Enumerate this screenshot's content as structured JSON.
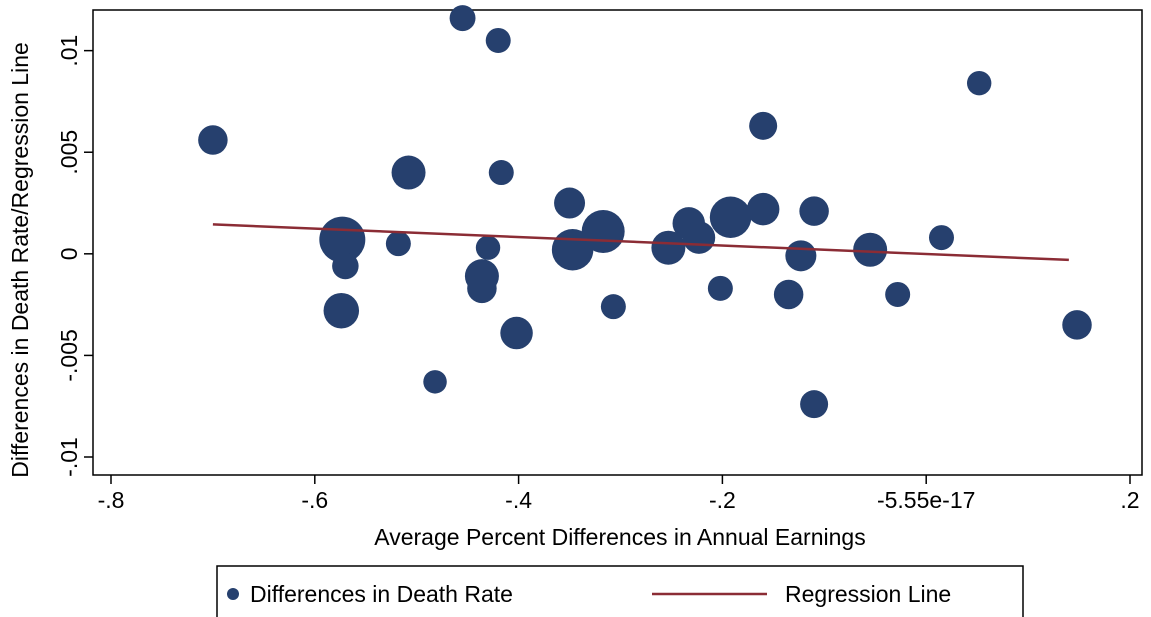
{
  "chart_data": {
    "type": "scatter",
    "xlabel": "Average Percent Differences in Annual Earnings",
    "ylabel": "Differences in Death Rate/Regression Line",
    "xlim": [
      -0.8,
      0.2
    ],
    "ylim": [
      -0.01,
      0.012
    ],
    "x_ticks": [
      {
        "value": -0.8,
        "label": "-.8"
      },
      {
        "value": -0.6,
        "label": "-.6"
      },
      {
        "value": -0.4,
        "label": "-.4"
      },
      {
        "value": -0.2,
        "label": "-.2"
      },
      {
        "value": 0.0,
        "label": "-5.55e-17"
      },
      {
        "value": 0.2,
        "label": ".2"
      }
    ],
    "y_ticks": [
      {
        "value": -0.01,
        "label": "-.01"
      },
      {
        "value": -0.005,
        "label": "-.005"
      },
      {
        "value": 0.0,
        "label": "0"
      },
      {
        "value": 0.005,
        "label": ".005"
      },
      {
        "value": 0.01,
        "label": ".01"
      }
    ],
    "grid": false,
    "legend_position": "bottom",
    "series": [
      {
        "name": "Differences in Death Rate",
        "kind": "scatter",
        "color": "#26406e",
        "points": [
          {
            "x": -0.7,
            "y": 0.0056,
            "size": 0.45
          },
          {
            "x": -0.573,
            "y": 0.0007,
            "size": 1.0
          },
          {
            "x": -0.57,
            "y": -0.0006,
            "size": 0.35
          },
          {
            "x": -0.574,
            "y": -0.0028,
            "size": 0.65
          },
          {
            "x": -0.518,
            "y": 0.0005,
            "size": 0.3
          },
          {
            "x": -0.508,
            "y": 0.004,
            "size": 0.6
          },
          {
            "x": -0.482,
            "y": -0.0063,
            "size": 0.25
          },
          {
            "x": -0.455,
            "y": 0.0116,
            "size": 0.33
          },
          {
            "x": -0.43,
            "y": 0.0003,
            "size": 0.28
          },
          {
            "x": -0.436,
            "y": -0.0011,
            "size": 0.6
          },
          {
            "x": -0.436,
            "y": -0.0017,
            "size": 0.45
          },
          {
            "x": -0.42,
            "y": 0.0105,
            "size": 0.3
          },
          {
            "x": -0.417,
            "y": 0.004,
            "size": 0.3
          },
          {
            "x": -0.402,
            "y": -0.0039,
            "size": 0.55
          },
          {
            "x": -0.35,
            "y": 0.0025,
            "size": 0.5
          },
          {
            "x": -0.347,
            "y": 0.0002,
            "size": 0.85
          },
          {
            "x": -0.317,
            "y": 0.0011,
            "size": 0.9
          },
          {
            "x": -0.307,
            "y": -0.0026,
            "size": 0.3
          },
          {
            "x": -0.253,
            "y": 0.0003,
            "size": 0.6
          },
          {
            "x": -0.233,
            "y": 0.0015,
            "size": 0.55
          },
          {
            "x": -0.223,
            "y": 0.0008,
            "size": 0.55
          },
          {
            "x": -0.202,
            "y": -0.0017,
            "size": 0.3
          },
          {
            "x": -0.192,
            "y": 0.0018,
            "size": 0.85
          },
          {
            "x": -0.16,
            "y": 0.0063,
            "size": 0.4
          },
          {
            "x": -0.16,
            "y": 0.0022,
            "size": 0.55
          },
          {
            "x": -0.135,
            "y": -0.002,
            "size": 0.45
          },
          {
            "x": -0.123,
            "y": -0.0001,
            "size": 0.5
          },
          {
            "x": -0.11,
            "y": 0.0021,
            "size": 0.45
          },
          {
            "x": -0.11,
            "y": -0.0074,
            "size": 0.4
          },
          {
            "x": -0.055,
            "y": 0.0002,
            "size": 0.6
          },
          {
            "x": -0.028,
            "y": -0.002,
            "size": 0.3
          },
          {
            "x": 0.015,
            "y": 0.0008,
            "size": 0.3
          },
          {
            "x": 0.052,
            "y": 0.0084,
            "size": 0.28
          },
          {
            "x": 0.148,
            "y": -0.0035,
            "size": 0.45
          }
        ]
      },
      {
        "name": "Regression Line",
        "kind": "line",
        "color": "#8b2c35",
        "x": [
          -0.7,
          0.14
        ],
        "y": [
          0.00145,
          -0.0003
        ]
      }
    ]
  }
}
